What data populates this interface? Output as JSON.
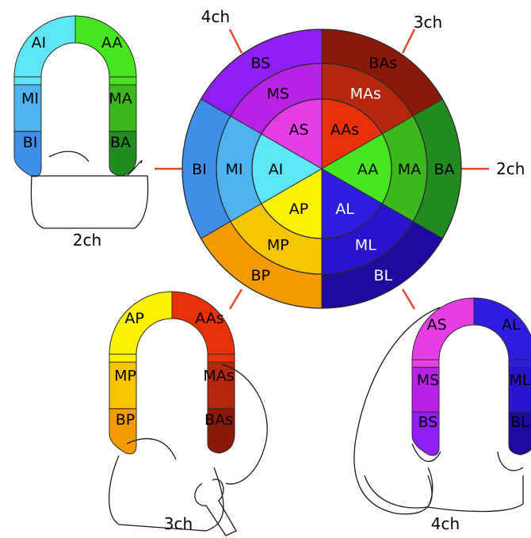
{
  "bullseye": {
    "view_labels": {
      "top_left": "4ch",
      "top_right": "3ch",
      "right": "2ch"
    },
    "segments": [
      {
        "id": "BAs",
        "label": "BAs",
        "color": "#8b1a0a",
        "text": "#000000"
      },
      {
        "id": "BA",
        "label": "BA",
        "color": "#228b22",
        "text": "#000000"
      },
      {
        "id": "BL",
        "label": "BL",
        "color": "#1e0a9c",
        "text": "#ffffff"
      },
      {
        "id": "BP",
        "label": "BP",
        "color": "#f39a00",
        "text": "#000000"
      },
      {
        "id": "BI",
        "label": "BI",
        "color": "#3f8fe8",
        "text": "#000000"
      },
      {
        "id": "BS",
        "label": "BS",
        "color": "#8f1ff5",
        "text": "#000000"
      },
      {
        "id": "MAs",
        "label": "MAs",
        "color": "#b5260f",
        "text": "#ffffff"
      },
      {
        "id": "MA",
        "label": "MA",
        "color": "#3db81c",
        "text": "#000000"
      },
      {
        "id": "ML",
        "label": "ML",
        "color": "#2a13cc",
        "text": "#ffffff"
      },
      {
        "id": "MP",
        "label": "MP",
        "color": "#f7c400",
        "text": "#000000"
      },
      {
        "id": "MI",
        "label": "MI",
        "color": "#4fb3f0",
        "text": "#000000"
      },
      {
        "id": "MS",
        "label": "MS",
        "color": "#bb22e8",
        "text": "#000000"
      },
      {
        "id": "AAs",
        "label": "AAs",
        "color": "#e8300a",
        "text": "#000000"
      },
      {
        "id": "AA",
        "label": "AA",
        "color": "#46e61e",
        "text": "#000000"
      },
      {
        "id": "AL",
        "label": "AL",
        "color": "#2f1de0",
        "text": "#ffffff"
      },
      {
        "id": "AP",
        "label": "AP",
        "color": "#f9f200",
        "text": "#000000"
      },
      {
        "id": "AI",
        "label": "AI",
        "color": "#5ee6f6",
        "text": "#000000"
      },
      {
        "id": "AS",
        "label": "AS",
        "color": "#e63ee6",
        "text": "#000000"
      }
    ]
  },
  "view_2ch": {
    "caption": "2ch",
    "left_segments": [
      {
        "label": "AI",
        "color": "#5ee6f6"
      },
      {
        "label": "MI",
        "color": "#4fb3f0"
      },
      {
        "label": "BI",
        "color": "#3f8fe8"
      }
    ],
    "right_segments": [
      {
        "label": "AA",
        "color": "#46e61e"
      },
      {
        "label": "MA",
        "color": "#3db81c"
      },
      {
        "label": "BA",
        "color": "#228b22"
      }
    ]
  },
  "view_3ch": {
    "caption": "3ch",
    "left_segments": [
      {
        "label": "AP",
        "color": "#f9f200"
      },
      {
        "label": "MP",
        "color": "#f7c400"
      },
      {
        "label": "BP",
        "color": "#f39a00"
      }
    ],
    "right_segments": [
      {
        "label": "AAs",
        "color": "#e8300a"
      },
      {
        "label": "MAs",
        "color": "#b5260f"
      },
      {
        "label": "BAs",
        "color": "#8b1a0a"
      }
    ]
  },
  "view_4ch": {
    "caption": "4ch",
    "left_segments": [
      {
        "label": "AS",
        "color": "#e63ee6"
      },
      {
        "label": "MS",
        "color": "#bb22e8"
      },
      {
        "label": "BS",
        "color": "#8f1ff5"
      }
    ],
    "right_segments": [
      {
        "label": "AL",
        "color": "#2f1de0"
      },
      {
        "label": "ML",
        "color": "#2a13cc"
      },
      {
        "label": "BL",
        "color": "#1e0a9c"
      }
    ]
  },
  "colors": {
    "axis_line": "#e04a2a"
  }
}
